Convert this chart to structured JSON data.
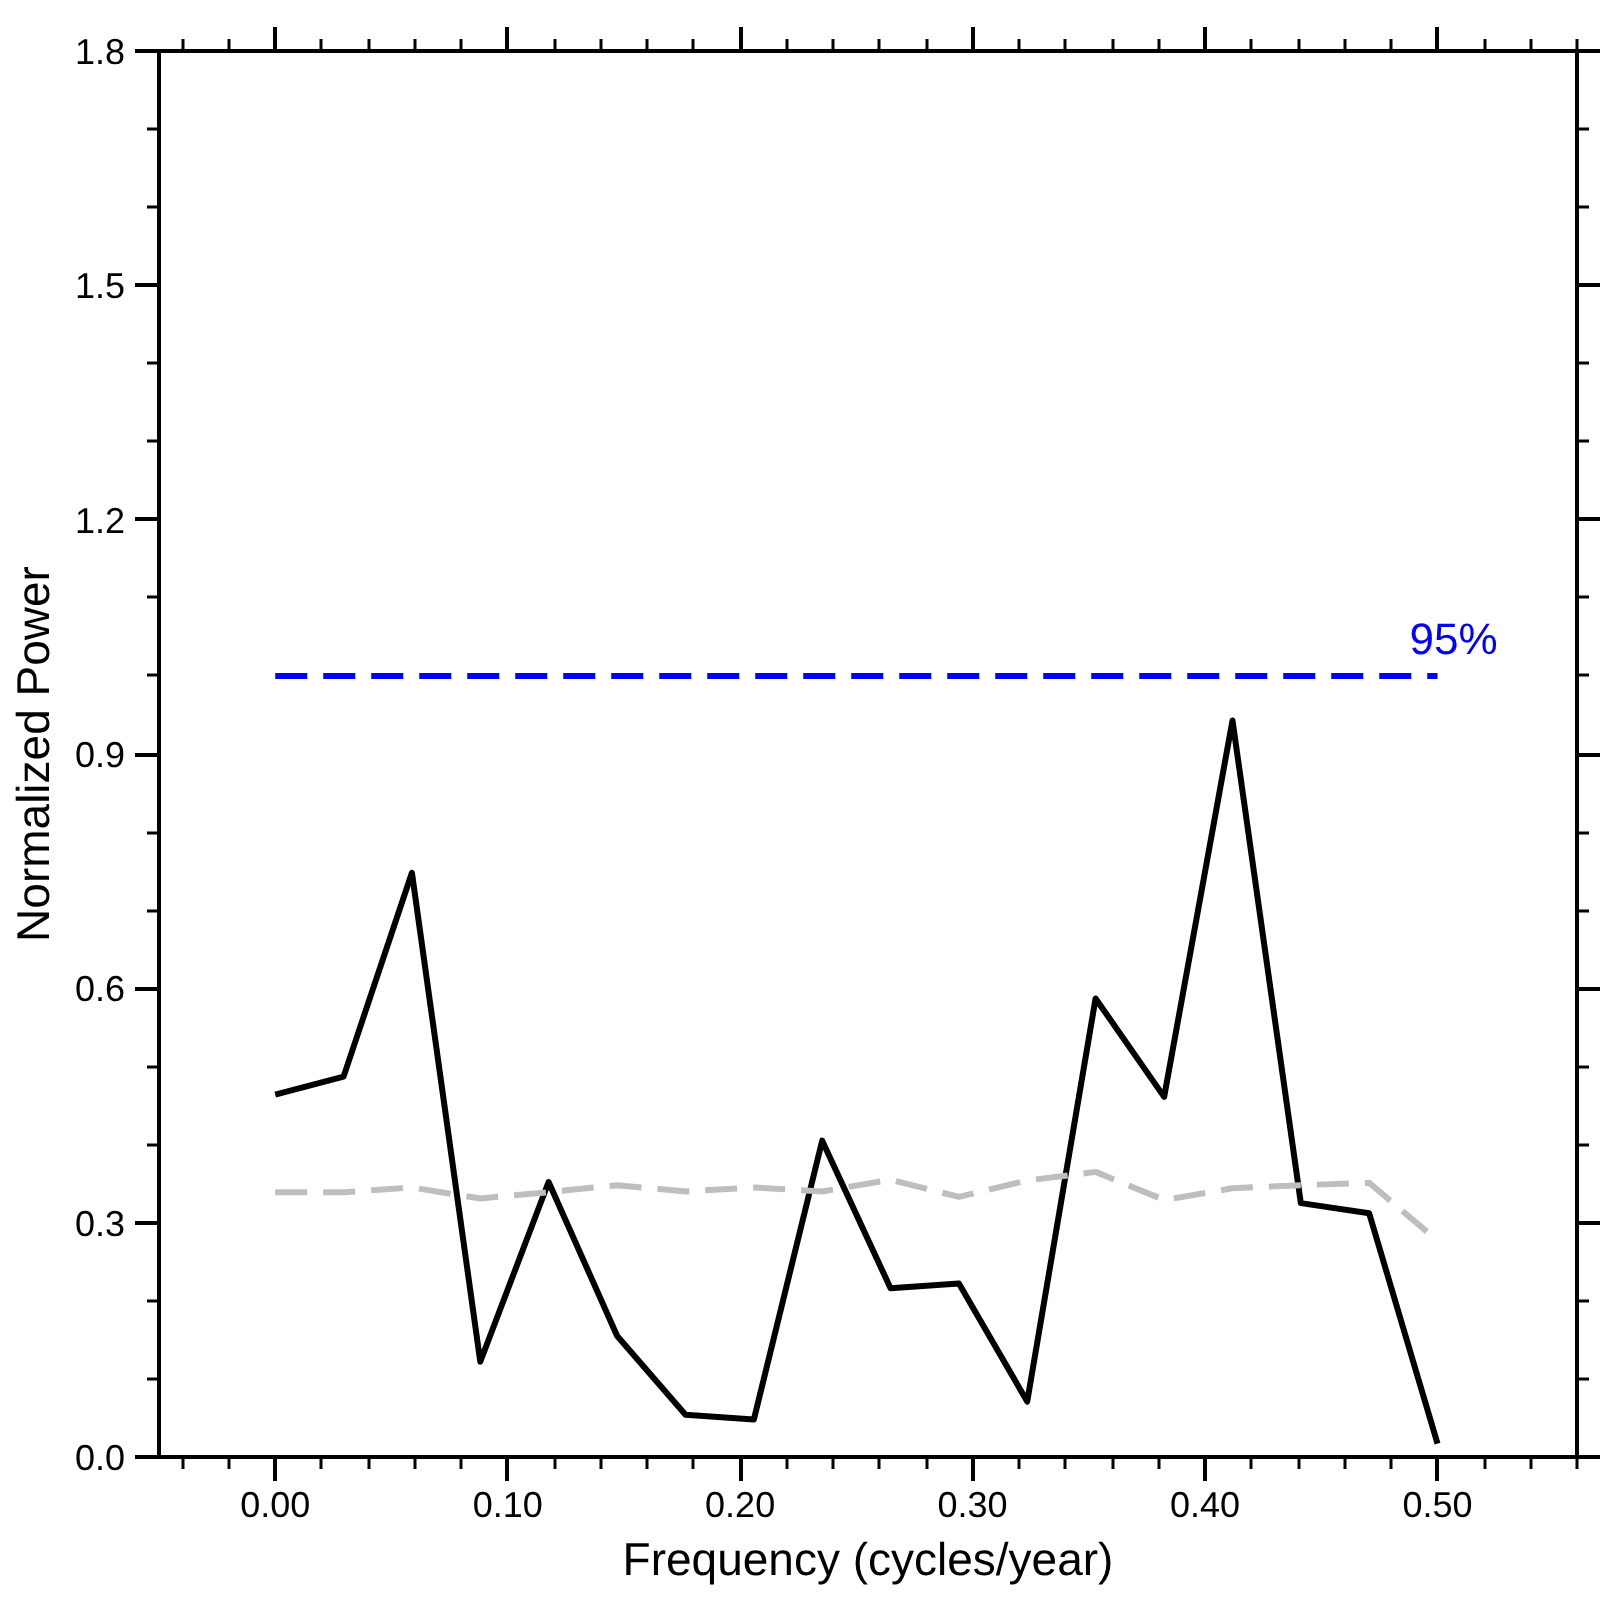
{
  "chart_data": {
    "type": "line",
    "xlabel": "Frequency (cycles/year)",
    "ylabel": "Normalized Power",
    "x": [
      0.0,
      0.0294,
      0.0588,
      0.0882,
      0.1176,
      0.1471,
      0.1765,
      0.2059,
      0.2353,
      0.2647,
      0.2941,
      0.3235,
      0.3529,
      0.3824,
      0.4118,
      0.4412,
      0.4706,
      0.5
    ],
    "series": [
      {
        "color": "#000000",
        "line_style": "solid",
        "values": [
          0.464,
          0.487,
          0.748,
          0.122,
          0.352,
          0.155,
          0.054,
          0.048,
          0.405,
          0.216,
          0.222,
          0.071,
          0.587,
          0.461,
          0.943,
          0.325,
          0.312,
          0.017
        ]
      },
      {
        "color": "#bebebe",
        "line_style": "dashed",
        "values": [
          0.339,
          0.339,
          0.345,
          0.331,
          0.339,
          0.348,
          0.34,
          0.345,
          0.34,
          0.355,
          0.333,
          0.354,
          0.365,
          0.329,
          0.344,
          0.348,
          0.351,
          0.277
        ]
      },
      {
        "name": "95%",
        "color": "#0000ff",
        "line_style": "dashed",
        "x": [
          0.0,
          0.5
        ],
        "values": [
          1.0,
          1.0
        ]
      }
    ],
    "xlim": [
      -0.05,
      0.56
    ],
    "ylim": [
      0.0,
      1.8
    ],
    "xticks": [
      {
        "value": 0.0,
        "label": "0.00"
      },
      {
        "value": 0.1,
        "label": "0.10"
      },
      {
        "value": 0.2,
        "label": "0.20"
      },
      {
        "value": 0.3,
        "label": "0.30"
      },
      {
        "value": 0.4,
        "label": "0.40"
      },
      {
        "value": 0.5,
        "label": "0.50"
      }
    ],
    "yticks": [
      {
        "value": 0.0,
        "label": "0.0"
      },
      {
        "value": 0.3,
        "label": "0.3"
      },
      {
        "value": 0.6,
        "label": "0.6"
      },
      {
        "value": 0.9,
        "label": "0.9"
      },
      {
        "value": 1.2,
        "label": "1.2"
      },
      {
        "value": 1.5,
        "label": "1.5"
      },
      {
        "value": 1.8,
        "label": "1.8"
      }
    ],
    "grid": false
  }
}
